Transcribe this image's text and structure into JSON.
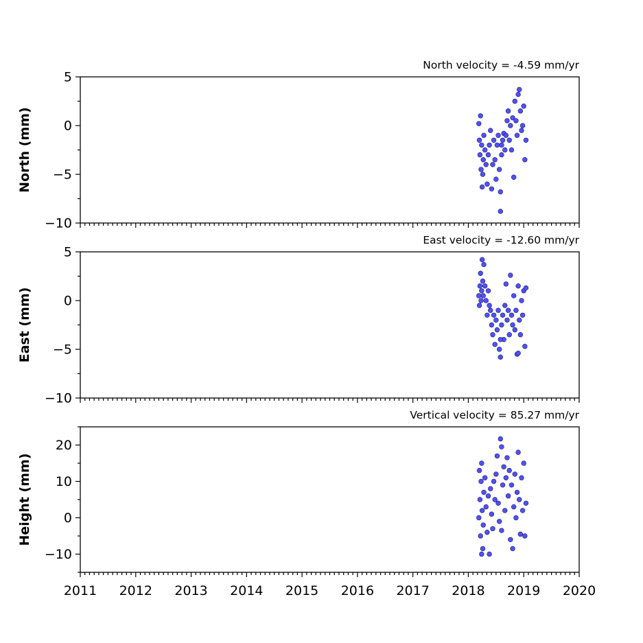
{
  "chart_data": [
    {
      "type": "scatter",
      "title": "North velocity = -4.59 mm/yr",
      "ylabel": "North (mm)",
      "xlim": [
        2011,
        2020
      ],
      "ylim": [
        -10,
        5
      ],
      "yticks": [
        -10,
        -5,
        0,
        5
      ],
      "ytick_labels": [
        "−10",
        "−5",
        "0",
        "5"
      ],
      "x_tick_labels_shown": false,
      "marker_color": "#5050ff",
      "series": [
        {
          "x": [
            2018.19,
            2018.2,
            2018.21,
            2018.22,
            2018.23,
            2018.24,
            2018.25,
            2018.26,
            2018.27,
            2018.28,
            2018.3,
            2018.32,
            2018.34,
            2018.36,
            2018.38,
            2018.4,
            2018.42,
            2018.44,
            2018.46,
            2018.48,
            2018.5,
            2018.52,
            2018.54,
            2018.56,
            2018.58,
            2018.6,
            2018.62,
            2018.64,
            2018.66,
            2018.68,
            2018.7,
            2018.72,
            2018.74,
            2018.76,
            2018.78,
            2018.8,
            2018.82,
            2018.84,
            2018.86,
            2018.88,
            2018.9,
            2018.92,
            2018.94,
            2018.96,
            2018.98,
            2019.0,
            2019.02,
            2019.04,
            2018.58,
            2018.6
          ],
          "y": [
            0.2,
            -1.5,
            -3.0,
            1.0,
            -4.5,
            -2.0,
            -6.3,
            -5.0,
            -3.5,
            -1.0,
            -2.5,
            -4.0,
            -6.0,
            -3.0,
            -2.0,
            -0.5,
            -6.5,
            -4.0,
            -1.5,
            -3.5,
            -5.5,
            -2.0,
            -1.0,
            -4.5,
            -6.8,
            -3.0,
            -1.5,
            -0.8,
            -2.5,
            -1.0,
            0.5,
            1.5,
            -1.5,
            0.0,
            -2.5,
            0.8,
            -5.3,
            2.5,
            0.5,
            -1.0,
            3.2,
            3.7,
            1.5,
            -0.5,
            0.0,
            2.0,
            -3.5,
            -1.5,
            -8.8,
            -2.0
          ]
        }
      ]
    },
    {
      "type": "scatter",
      "title": "East velocity = -12.60 mm/yr",
      "ylabel": "East (mm)",
      "xlim": [
        2011,
        2020
      ],
      "ylim": [
        -10,
        5
      ],
      "yticks": [
        -10,
        -5,
        0,
        5
      ],
      "ytick_labels": [
        "−10",
        "−5",
        "0",
        "5"
      ],
      "x_tick_labels_shown": false,
      "marker_color": "#5050ff",
      "series": [
        {
          "x": [
            2018.19,
            2018.2,
            2018.21,
            2018.22,
            2018.23,
            2018.24,
            2018.25,
            2018.26,
            2018.27,
            2018.28,
            2018.3,
            2018.32,
            2018.34,
            2018.36,
            2018.38,
            2018.4,
            2018.42,
            2018.44,
            2018.46,
            2018.48,
            2018.5,
            2018.52,
            2018.54,
            2018.56,
            2018.58,
            2018.6,
            2018.62,
            2018.64,
            2018.66,
            2018.68,
            2018.7,
            2018.72,
            2018.74,
            2018.76,
            2018.78,
            2018.8,
            2018.82,
            2018.84,
            2018.86,
            2018.88,
            2018.9,
            2018.92,
            2018.94,
            2018.96,
            2018.98,
            2019.0,
            2019.02,
            2019.04,
            2018.58,
            2018.9
          ],
          "y": [
            0.5,
            -0.5,
            1.5,
            2.8,
            0.0,
            1.0,
            4.2,
            2.0,
            0.5,
            3.7,
            1.5,
            0.0,
            -1.5,
            1.0,
            -0.5,
            -1.0,
            -2.5,
            -3.5,
            -1.5,
            -4.5,
            -2.0,
            -3.0,
            -1.0,
            -5.0,
            -5.8,
            -2.5,
            -1.5,
            -4.0,
            -0.5,
            1.7,
            -2.0,
            -1.0,
            -3.5,
            2.6,
            -1.5,
            -2.5,
            0.5,
            -3.0,
            -1.0,
            -5.5,
            1.5,
            -2.0,
            -3.5,
            0.0,
            -1.5,
            1.0,
            -4.7,
            1.3,
            -4.0,
            -5.4
          ]
        }
      ]
    },
    {
      "type": "scatter",
      "title": "Vertical velocity = 85.27 mm/yr",
      "ylabel": "Height (mm)",
      "xlim": [
        2011,
        2020
      ],
      "ylim": [
        -15,
        25
      ],
      "yticks": [
        -10,
        0,
        10,
        20
      ],
      "ytick_labels": [
        "−10",
        "0",
        "10",
        "20"
      ],
      "xticks": [
        2011,
        2012,
        2013,
        2014,
        2015,
        2016,
        2017,
        2018,
        2019,
        2020
      ],
      "xtick_labels": [
        "2011",
        "2012",
        "2013",
        "2014",
        "2015",
        "2016",
        "2017",
        "2018",
        "2019",
        "2020"
      ],
      "marker_color": "#5050ff",
      "series": [
        {
          "x": [
            2018.19,
            2018.2,
            2018.21,
            2018.22,
            2018.23,
            2018.24,
            2018.25,
            2018.26,
            2018.27,
            2018.28,
            2018.3,
            2018.32,
            2018.34,
            2018.36,
            2018.38,
            2018.4,
            2018.42,
            2018.44,
            2018.46,
            2018.48,
            2018.5,
            2018.52,
            2018.54,
            2018.56,
            2018.58,
            2018.6,
            2018.62,
            2018.64,
            2018.66,
            2018.68,
            2018.7,
            2018.72,
            2018.74,
            2018.76,
            2018.78,
            2018.8,
            2018.82,
            2018.84,
            2018.86,
            2018.88,
            2018.9,
            2018.92,
            2018.94,
            2018.96,
            2018.98,
            2019.0,
            2019.02,
            2019.04,
            2018.6,
            2018.24
          ],
          "y": [
            0.0,
            13.0,
            5.0,
            -5.0,
            10.0,
            15.0,
            2.0,
            -8.5,
            -2.0,
            7.0,
            11.0,
            3.0,
            -4.0,
            6.0,
            -10.0,
            8.0,
            1.0,
            -3.0,
            10.0,
            5.0,
            12.0,
            17.0,
            4.0,
            -1.0,
            21.7,
            19.5,
            9.0,
            14.0,
            2.0,
            11.0,
            16.5,
            6.0,
            13.0,
            -6.0,
            9.0,
            -8.5,
            3.0,
            12.0,
            0.0,
            7.0,
            18.0,
            5.0,
            -4.5,
            11.0,
            2.0,
            15.0,
            -5.0,
            4.0,
            -3.5,
            -10.0
          ]
        }
      ]
    }
  ]
}
